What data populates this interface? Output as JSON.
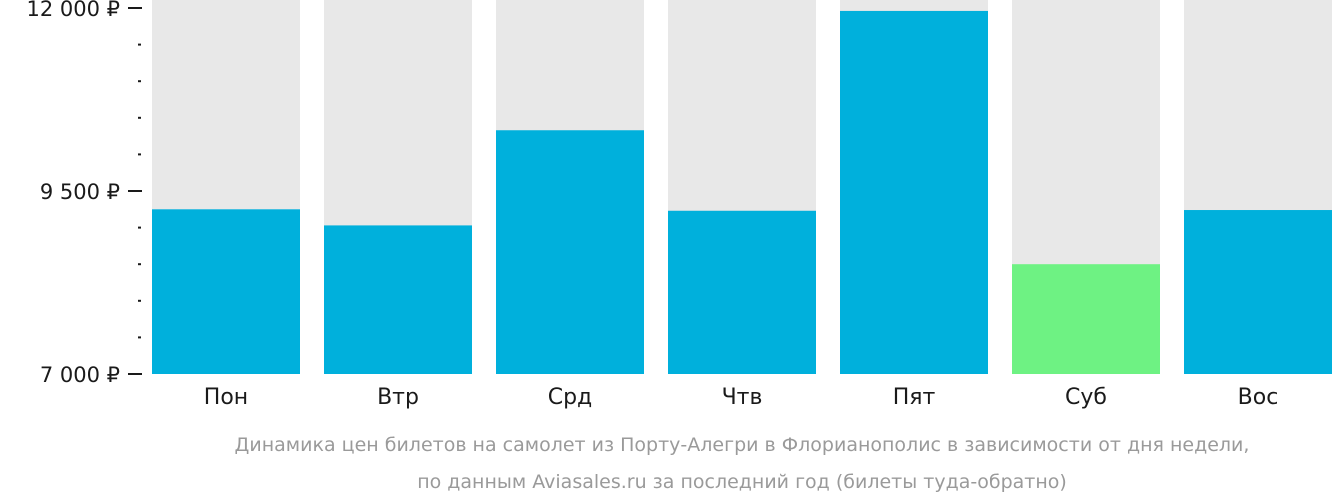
{
  "chart_data": {
    "type": "bar",
    "categories": [
      "Пон",
      "Втр",
      "Срд",
      "Чтв",
      "Пят",
      "Суб",
      "Вос"
    ],
    "values": [
      9250,
      9030,
      10330,
      9230,
      11960,
      8500,
      9240
    ],
    "ylim": [
      7000,
      12000
    ],
    "yticks": [
      {
        "value": 12000,
        "label": "12 000 ₽"
      },
      {
        "value": 9500,
        "label": "9 500 ₽"
      },
      {
        "value": 7000,
        "label": "7 000 ₽"
      }
    ],
    "minor_tick_step": 500,
    "bar_color": "#00b0dc",
    "highlight_color": "#6ef283",
    "highlight_index": 5,
    "background_bar_color": "#e8e8e8",
    "caption": [
      "Динамика цен билетов на самолет из Порту-Алегри в Флорианополис в зависимости от дня недели,",
      "по данным Aviasales.ru за последний год (билеты туда-обратно)"
    ]
  }
}
